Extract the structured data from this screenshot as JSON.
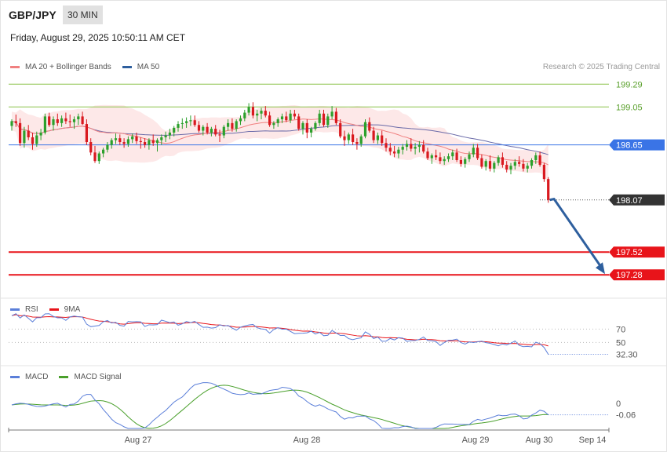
{
  "header": {
    "symbol": "GBP/JPY",
    "timeframe": "30 MIN",
    "datetime": "Friday, August 29, 2025 10:50:11 AM CET"
  },
  "legend": {
    "ma20_bb": "MA 20 + Bollinger Bands",
    "ma50": "MA 50",
    "credit": "Research © 2025 Trading Central"
  },
  "rsi_legend": {
    "rsi": "RSI",
    "ma9": "9MA"
  },
  "macd_legend": {
    "macd": "MACD",
    "signal": "MACD Signal"
  },
  "colors": {
    "bull": "#2ca02c",
    "bear": "#d9191f",
    "ma20": "#f08080",
    "bb_fill": "#fde4e4",
    "ma50": "#6a6aa8",
    "support": "#e8141a",
    "pivot": "#3a74e6",
    "resistance": "#8bc34a",
    "arrow": "#2e5f9e",
    "rsi": "#5b7fd9",
    "rsi_ma": "#e8141a",
    "macd": "#5b7fd9",
    "macd_signal": "#4aa02c"
  },
  "chart_data": {
    "type": "candlestick",
    "price_axis": {
      "min": 197.1,
      "max": 199.4
    },
    "levels": [
      {
        "value": 199.29,
        "label": "199.29",
        "kind": "resistance"
      },
      {
        "value": 199.05,
        "label": "199.05",
        "kind": "resistance"
      },
      {
        "value": 198.65,
        "label": "198.65",
        "kind": "pivot"
      },
      {
        "value": 198.07,
        "label": "198.07",
        "kind": "last"
      },
      {
        "value": 197.52,
        "label": "197.52",
        "kind": "support"
      },
      {
        "value": 197.28,
        "label": "197.28",
        "kind": "support"
      }
    ],
    "forecast_path": [
      198.07,
      198.08,
      197.28
    ],
    "x_labels": [
      "Aug 27",
      "Aug 28",
      "Aug 29",
      "Aug 30",
      "Sep 14"
    ],
    "candles": [
      [
        198.85,
        198.92,
        198.8,
        198.9
      ],
      [
        198.9,
        198.97,
        198.84,
        198.88
      ],
      [
        198.88,
        198.93,
        198.64,
        198.67
      ],
      [
        198.67,
        198.84,
        198.62,
        198.8
      ],
      [
        198.8,
        198.86,
        198.7,
        198.73
      ],
      [
        198.73,
        198.78,
        198.6,
        198.66
      ],
      [
        198.66,
        198.79,
        198.63,
        198.75
      ],
      [
        198.75,
        198.82,
        198.7,
        198.78
      ],
      [
        198.78,
        198.98,
        198.76,
        198.95
      ],
      [
        198.95,
        198.99,
        198.84,
        198.86
      ],
      [
        198.86,
        198.95,
        198.8,
        198.92
      ],
      [
        198.92,
        198.98,
        198.85,
        198.88
      ],
      [
        198.88,
        198.96,
        198.84,
        198.93
      ],
      [
        198.93,
        198.99,
        198.87,
        198.9
      ],
      [
        198.9,
        198.97,
        198.84,
        198.89
      ],
      [
        198.89,
        198.95,
        198.82,
        198.92
      ],
      [
        198.92,
        198.98,
        198.86,
        198.95
      ],
      [
        198.95,
        199.0,
        198.86,
        198.87
      ],
      [
        198.87,
        198.92,
        198.65,
        198.68
      ],
      [
        198.68,
        198.72,
        198.54,
        198.57
      ],
      [
        198.57,
        198.64,
        198.46,
        198.48
      ],
      [
        198.48,
        198.58,
        198.45,
        198.56
      ],
      [
        198.56,
        198.62,
        198.52,
        198.6
      ],
      [
        198.6,
        198.68,
        198.57,
        198.65
      ],
      [
        198.65,
        198.72,
        198.61,
        198.7
      ],
      [
        198.7,
        198.77,
        198.66,
        198.72
      ],
      [
        198.72,
        198.76,
        198.65,
        198.68
      ],
      [
        198.68,
        198.72,
        198.62,
        198.66
      ],
      [
        198.66,
        198.74,
        198.63,
        198.71
      ],
      [
        198.71,
        198.77,
        198.67,
        198.74
      ],
      [
        198.74,
        198.78,
        198.66,
        198.69
      ],
      [
        198.69,
        198.73,
        198.61,
        198.68
      ],
      [
        198.68,
        198.72,
        198.62,
        198.65
      ],
      [
        198.65,
        198.72,
        198.6,
        198.7
      ],
      [
        198.7,
        198.76,
        198.64,
        198.67
      ],
      [
        198.67,
        198.72,
        198.58,
        198.7
      ],
      [
        198.7,
        198.76,
        198.65,
        198.73
      ],
      [
        198.73,
        198.79,
        198.68,
        198.75
      ],
      [
        198.75,
        198.82,
        198.71,
        198.78
      ],
      [
        198.78,
        198.85,
        198.74,
        198.83
      ],
      [
        198.83,
        198.9,
        198.79,
        198.87
      ],
      [
        198.87,
        198.93,
        198.82,
        198.88
      ],
      [
        198.88,
        198.94,
        198.83,
        198.9
      ],
      [
        198.9,
        198.96,
        198.85,
        198.91
      ],
      [
        198.91,
        198.96,
        198.84,
        198.86
      ],
      [
        198.86,
        198.9,
        198.78,
        198.8
      ],
      [
        198.8,
        198.86,
        198.75,
        198.84
      ],
      [
        198.84,
        198.88,
        198.76,
        198.78
      ],
      [
        198.78,
        198.84,
        198.74,
        198.82
      ],
      [
        198.82,
        198.86,
        198.74,
        198.76
      ],
      [
        198.76,
        198.81,
        198.68,
        198.75
      ],
      [
        198.75,
        198.86,
        198.72,
        198.84
      ],
      [
        198.84,
        198.92,
        198.8,
        198.88
      ],
      [
        198.88,
        198.93,
        198.79,
        198.82
      ],
      [
        198.82,
        198.92,
        198.79,
        198.9
      ],
      [
        198.9,
        198.96,
        198.86,
        198.93
      ],
      [
        198.93,
        199.02,
        198.9,
        198.99
      ],
      [
        198.99,
        199.09,
        198.96,
        199.05
      ],
      [
        199.05,
        199.1,
        198.93,
        198.96
      ],
      [
        198.96,
        199.02,
        198.9,
        198.98
      ],
      [
        198.98,
        199.04,
        198.92,
        199.01
      ],
      [
        199.01,
        199.06,
        198.94,
        198.96
      ],
      [
        198.96,
        199.0,
        198.84,
        198.86
      ],
      [
        198.86,
        198.9,
        198.82,
        198.88
      ],
      [
        198.88,
        198.94,
        198.84,
        198.92
      ],
      [
        198.92,
        198.98,
        198.88,
        198.95
      ],
      [
        198.95,
        199.0,
        198.89,
        198.91
      ],
      [
        198.91,
        199.02,
        198.88,
        198.98
      ],
      [
        198.98,
        199.02,
        198.92,
        198.95
      ],
      [
        198.95,
        198.98,
        198.8,
        198.82
      ],
      [
        198.82,
        198.9,
        198.76,
        198.88
      ],
      [
        198.88,
        198.92,
        198.72,
        198.78
      ],
      [
        198.78,
        198.84,
        198.73,
        198.82
      ],
      [
        198.82,
        198.9,
        198.8,
        198.88
      ],
      [
        198.88,
        199.02,
        198.85,
        198.98
      ],
      [
        198.98,
        199.02,
        198.84,
        198.86
      ],
      [
        198.86,
        198.98,
        198.83,
        198.95
      ],
      [
        198.95,
        199.06,
        198.92,
        199.0
      ],
      [
        199.0,
        199.04,
        198.86,
        198.88
      ],
      [
        198.88,
        198.92,
        198.72,
        198.74
      ],
      [
        198.74,
        198.8,
        198.64,
        198.7
      ],
      [
        198.7,
        198.78,
        198.66,
        198.76
      ],
      [
        198.76,
        198.82,
        198.65,
        198.68
      ],
      [
        198.68,
        198.72,
        198.6,
        198.66
      ],
      [
        198.66,
        198.76,
        198.63,
        198.74
      ],
      [
        198.74,
        198.92,
        198.72,
        198.89
      ],
      [
        198.89,
        198.94,
        198.78,
        198.8
      ],
      [
        198.8,
        198.84,
        198.67,
        198.7
      ],
      [
        198.7,
        198.78,
        198.66,
        198.75
      ],
      [
        198.75,
        198.8,
        198.64,
        198.67
      ],
      [
        198.67,
        198.72,
        198.58,
        198.62
      ],
      [
        198.62,
        198.67,
        198.54,
        198.58
      ],
      [
        198.58,
        198.64,
        198.52,
        198.56
      ],
      [
        198.56,
        198.63,
        198.51,
        198.6
      ],
      [
        198.6,
        198.66,
        198.55,
        198.63
      ],
      [
        198.63,
        198.7,
        198.59,
        198.66
      ],
      [
        198.66,
        198.72,
        198.58,
        198.61
      ],
      [
        198.61,
        198.67,
        198.55,
        198.63
      ],
      [
        198.63,
        198.69,
        198.57,
        198.65
      ],
      [
        198.65,
        198.7,
        198.56,
        198.58
      ],
      [
        198.58,
        198.62,
        198.49,
        198.51
      ],
      [
        198.51,
        198.56,
        198.45,
        198.54
      ],
      [
        198.54,
        198.6,
        198.49,
        198.52
      ],
      [
        198.52,
        198.57,
        198.45,
        198.48
      ],
      [
        198.48,
        198.53,
        198.44,
        198.5
      ],
      [
        198.5,
        198.56,
        198.47,
        198.53
      ],
      [
        198.53,
        198.6,
        198.49,
        198.57
      ],
      [
        198.57,
        198.61,
        198.47,
        198.49
      ],
      [
        198.49,
        198.53,
        198.42,
        198.45
      ],
      [
        198.45,
        198.52,
        198.41,
        198.5
      ],
      [
        198.5,
        198.58,
        198.47,
        198.55
      ],
      [
        198.55,
        198.66,
        198.52,
        198.62
      ],
      [
        198.62,
        198.66,
        198.49,
        198.51
      ],
      [
        198.51,
        198.55,
        198.4,
        198.42
      ],
      [
        198.42,
        198.5,
        198.38,
        198.48
      ],
      [
        198.48,
        198.54,
        198.37,
        198.4
      ],
      [
        198.4,
        198.48,
        198.36,
        198.46
      ],
      [
        198.46,
        198.54,
        198.43,
        198.52
      ],
      [
        198.52,
        198.57,
        198.41,
        198.44
      ],
      [
        198.44,
        198.48,
        198.36,
        198.39
      ],
      [
        198.39,
        198.46,
        198.34,
        198.43
      ],
      [
        198.43,
        198.5,
        198.39,
        198.47
      ],
      [
        198.47,
        198.53,
        198.42,
        198.45
      ],
      [
        198.45,
        198.5,
        198.37,
        198.4
      ],
      [
        198.4,
        198.46,
        198.36,
        198.43
      ],
      [
        198.43,
        198.51,
        198.4,
        198.49
      ],
      [
        198.49,
        198.57,
        198.45,
        198.54
      ],
      [
        198.54,
        198.58,
        198.42,
        198.44
      ],
      [
        198.44,
        198.46,
        198.26,
        198.29
      ],
      [
        198.29,
        198.31,
        198.04,
        198.07
      ]
    ],
    "rsi": {
      "name": "RSI",
      "ma_name": "9MA",
      "levels": [
        70,
        50
      ],
      "last_label": "32.30",
      "last": 32.3,
      "range": [
        20,
        95
      ]
    },
    "macd": {
      "name": "MACD",
      "signal_name": "MACD Signal",
      "zero_label": "0",
      "last_label": "-0.06",
      "last": -0.06
    }
  }
}
